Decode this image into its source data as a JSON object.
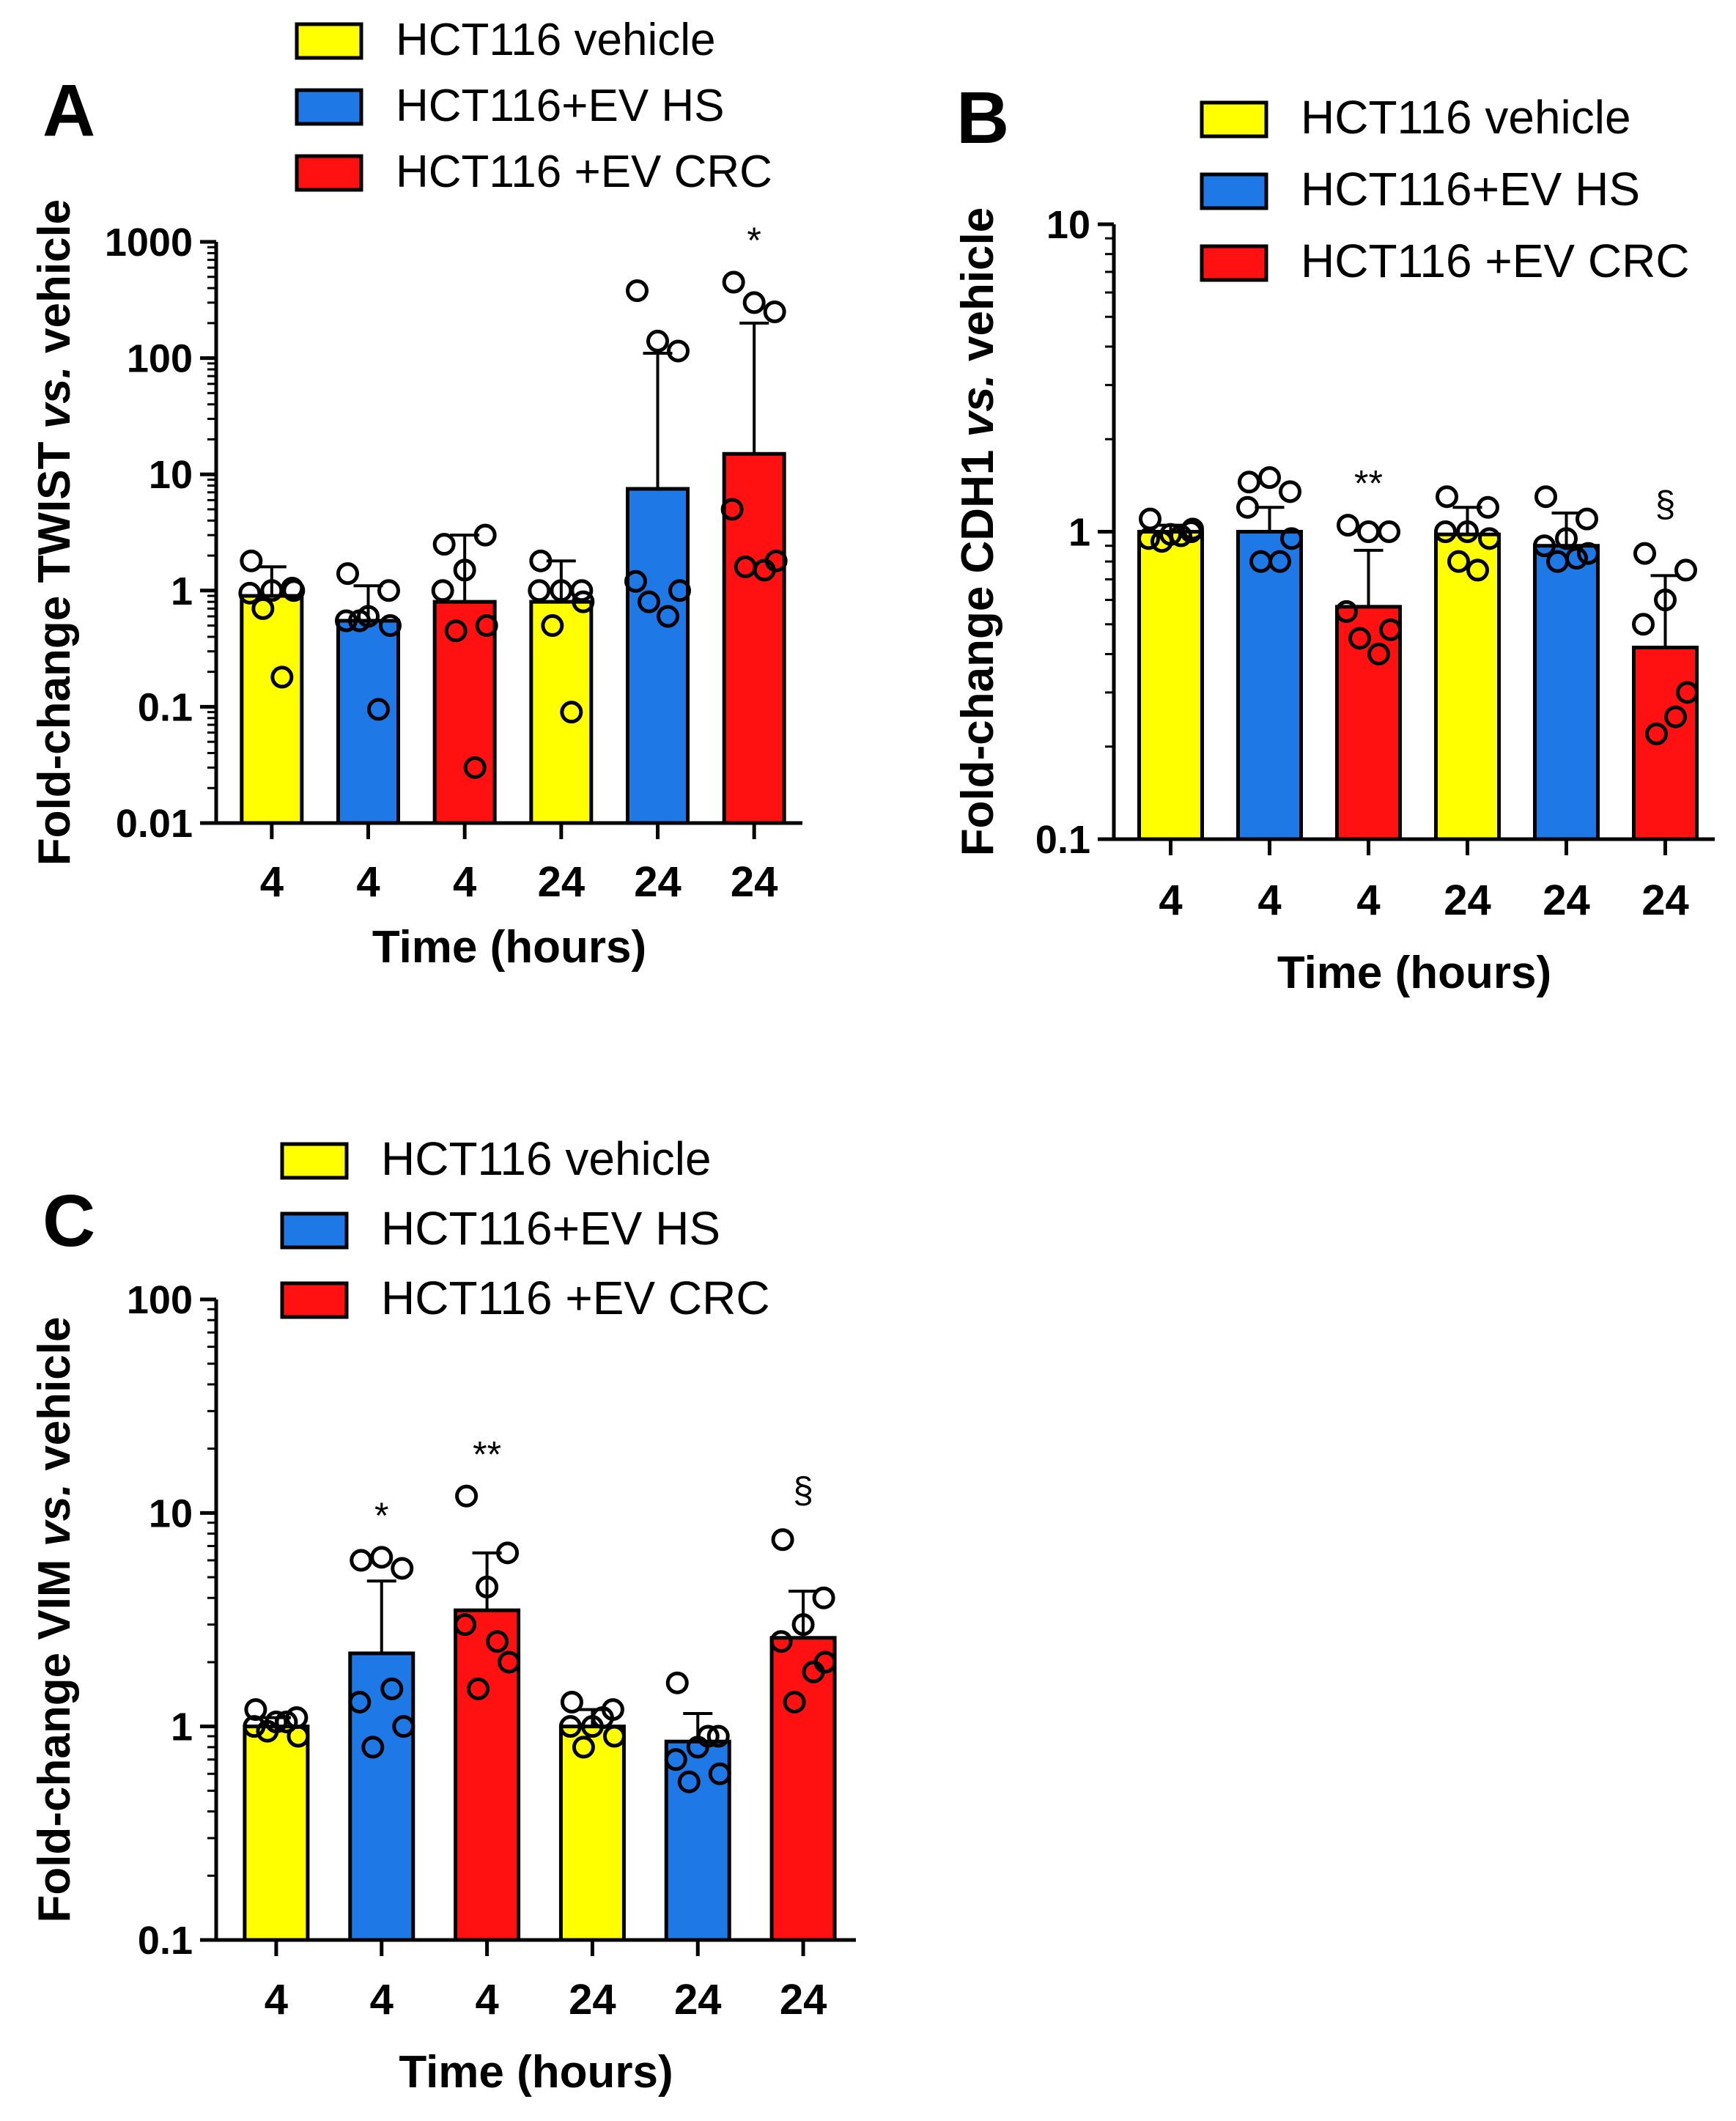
{
  "figure": {
    "panels": [
      "A",
      "B",
      "C"
    ]
  },
  "legend": {
    "entries": [
      {
        "label": "HCT116 vehicle",
        "color": "#ffff00"
      },
      {
        "label": "HCT116+EV HS",
        "color": "#1e78e6"
      },
      {
        "label": "HCT116 +EV CRC",
        "color": "#ff1111"
      }
    ]
  },
  "chart_data": [
    {
      "panel": "A",
      "type": "bar",
      "scale": "log",
      "title": "",
      "xlabel": "Time (hours)",
      "ylabel": "Fold-change  TWIST vs. vehicle",
      "ylabel_plain": "Fold-change  TWIST ",
      "ylabel_italic": "vs.",
      "ylabel_tail": " vehicle",
      "ylim": [
        0.01,
        1000
      ],
      "yticks": [
        0.01,
        0.1,
        1,
        10,
        100,
        1000
      ],
      "ytick_labels": [
        "0.01",
        "0.1",
        "1",
        "10",
        "100",
        "1000"
      ],
      "categories": [
        "4",
        "4",
        "4",
        "24",
        "24",
        "24"
      ],
      "groups": [
        "HCT116 vehicle",
        "HCT116+EV HS",
        "HCT116 +EV CRC",
        "HCT116 vehicle",
        "HCT116+EV HS",
        "HCT116 +EV CRC"
      ],
      "colors": [
        "#ffff00",
        "#1e78e6",
        "#ff1111",
        "#ffff00",
        "#1e78e6",
        "#ff1111"
      ],
      "values": [
        0.9,
        0.55,
        0.8,
        0.8,
        7.5,
        15
      ],
      "error_upper": [
        1.6,
        1.1,
        3.0,
        1.8,
        110,
        200
      ],
      "points": [
        [
          1.8,
          1.05,
          1.0,
          0.95,
          1.0,
          0.7,
          0.18
        ],
        [
          1.4,
          1.0,
          0.6,
          0.55,
          0.5,
          0.55,
          0.095
        ],
        [
          2.5,
          3.0,
          1.5,
          1.0,
          0.5,
          0.45,
          0.03
        ],
        [
          1.8,
          1.0,
          1.0,
          1.0,
          0.8,
          0.5,
          0.09
        ],
        [
          380,
          115,
          140,
          1.2,
          1.0,
          0.8,
          0.6
        ],
        [
          450,
          250,
          300,
          5.0,
          1.8,
          1.6,
          1.5
        ]
      ],
      "significance": [
        "",
        "",
        "",
        "",
        "",
        "*"
      ]
    },
    {
      "panel": "B",
      "type": "bar",
      "scale": "log",
      "title": "",
      "xlabel": "Time (hours)",
      "ylabel": "Fold-change CDH1 vs. vehicle",
      "ylabel_plain": "Fold-change CDH1 ",
      "ylabel_italic": "vs.",
      "ylabel_tail": " vehicle",
      "ylim": [
        0.1,
        10
      ],
      "yticks": [
        0.1,
        1,
        10
      ],
      "ytick_labels": [
        "0.1",
        "1",
        "10"
      ],
      "categories": [
        "4",
        "4",
        "4",
        "24",
        "24",
        "24"
      ],
      "groups": [
        "HCT116 vehicle",
        "HCT116+EV HS",
        "HCT116 +EV CRC",
        "HCT116 vehicle",
        "HCT116+EV HS",
        "HCT116 +EV CRC"
      ],
      "colors": [
        "#ffff00",
        "#1e78e6",
        "#ff1111",
        "#ffff00",
        "#1e78e6",
        "#ff1111"
      ],
      "values": [
        1.0,
        1.0,
        0.57,
        0.98,
        0.9,
        0.42
      ],
      "error_upper": [
        1.05,
        1.2,
        0.87,
        1.2,
        1.15,
        0.72
      ],
      "points": [
        [
          1.1,
          1.0,
          0.98,
          0.95,
          1.02,
          0.93,
          0.97
        ],
        [
          1.45,
          1.35,
          1.5,
          1.2,
          0.95,
          0.8,
          0.8
        ],
        [
          1.05,
          1.0,
          1.0,
          0.55,
          0.48,
          0.45,
          0.4
        ],
        [
          1.3,
          1.2,
          1.0,
          1.0,
          0.95,
          0.8,
          0.75
        ],
        [
          1.3,
          1.1,
          0.95,
          0.9,
          0.85,
          0.8,
          0.82
        ],
        [
          0.85,
          0.75,
          0.6,
          0.5,
          0.3,
          0.22,
          0.25
        ]
      ],
      "significance": [
        "",
        "",
        "**",
        "",
        "",
        "§"
      ]
    },
    {
      "panel": "C",
      "type": "bar",
      "scale": "log",
      "title": "",
      "xlabel": "Time (hours)",
      "ylabel": "Fold-change VIM vs. vehicle",
      "ylabel_plain": "Fold-change VIM ",
      "ylabel_italic": "vs.",
      "ylabel_tail": " vehicle",
      "ylim": [
        0.1,
        100
      ],
      "yticks": [
        0.1,
        1,
        10,
        100
      ],
      "ytick_labels": [
        "0.1",
        "1",
        "10",
        "100"
      ],
      "categories": [
        "4",
        "4",
        "4",
        "24",
        "24",
        "24"
      ],
      "groups": [
        "HCT116 vehicle",
        "HCT116+EV HS",
        "HCT116 +EV CRC",
        "HCT116 vehicle",
        "HCT116+EV HS",
        "HCT116 +EV CRC"
      ],
      "colors": [
        "#ffff00",
        "#1e78e6",
        "#ff1111",
        "#ffff00",
        "#1e78e6",
        "#ff1111"
      ],
      "values": [
        1.0,
        2.2,
        3.5,
        1.0,
        0.85,
        2.6
      ],
      "error_upper": [
        1.1,
        4.8,
        6.5,
        1.2,
        1.15,
        4.3
      ],
      "points": [
        [
          1.2,
          1.1,
          1.05,
          1.0,
          0.9,
          0.95,
          1.05
        ],
        [
          6.0,
          5.5,
          6.2,
          1.3,
          1.0,
          0.8,
          1.5
        ],
        [
          12,
          6.5,
          4.5,
          3.0,
          2.0,
          1.5,
          2.5
        ],
        [
          1.3,
          1.2,
          1.0,
          1.0,
          0.9,
          0.8,
          1.1
        ],
        [
          1.6,
          0.9,
          0.8,
          0.7,
          0.6,
          0.55,
          0.9
        ],
        [
          7.5,
          4.0,
          3.0,
          2.5,
          2.0,
          1.3,
          1.8
        ]
      ],
      "significance": [
        "",
        "*",
        "**",
        "",
        "",
        "§"
      ]
    }
  ]
}
